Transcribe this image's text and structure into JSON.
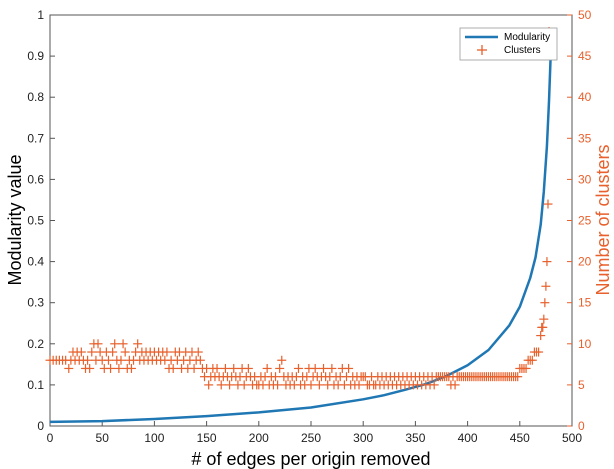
{
  "colors": {
    "modularity": "#1f77b4",
    "clusters": "#e8602c",
    "axis": "#333333"
  },
  "chart_data": {
    "type": "line+scatter",
    "xlabel": "# of edges per origin removed",
    "ylabel_left": "Modularity value",
    "ylabel_right": "Number of clusters",
    "xlim": [
      0,
      500
    ],
    "ylim_left": [
      0,
      1
    ],
    "ylim_right": [
      0,
      50
    ],
    "xticks": [
      "0",
      "50",
      "100",
      "150",
      "200",
      "250",
      "300",
      "350",
      "400",
      "450",
      "500"
    ],
    "yticks_left": [
      "0",
      "0.1",
      "0.2",
      "0.3",
      "0.4",
      "0.5",
      "0.6",
      "0.7",
      "0.8",
      "0.9",
      "1"
    ],
    "yticks_right": [
      "0",
      "5",
      "10",
      "15",
      "20",
      "25",
      "30",
      "35",
      "40",
      "45",
      "50"
    ],
    "legend": {
      "position": "top-right",
      "modularity_label": "Modularity",
      "clusters_label": "Clusters"
    },
    "grid": false,
    "series": [
      {
        "name": "Modularity",
        "type": "line",
        "axis": "left",
        "x": [
          0,
          50,
          100,
          150,
          200,
          250,
          300,
          320,
          340,
          360,
          380,
          400,
          420,
          440,
          450,
          460,
          465,
          470,
          473,
          476,
          478,
          480
        ],
        "y": [
          0.01,
          0.012,
          0.017,
          0.024,
          0.033,
          0.045,
          0.065,
          0.075,
          0.088,
          0.102,
          0.122,
          0.148,
          0.185,
          0.245,
          0.29,
          0.36,
          0.41,
          0.49,
          0.57,
          0.68,
          0.79,
          0.93
        ]
      },
      {
        "name": "Clusters",
        "type": "scatter",
        "axis": "right",
        "points": [
          [
            0,
            8
          ],
          [
            3,
            8
          ],
          [
            6,
            8
          ],
          [
            9,
            8
          ],
          [
            12,
            8
          ],
          [
            15,
            8
          ],
          [
            18,
            7
          ],
          [
            20,
            8
          ],
          [
            22,
            9
          ],
          [
            24,
            8
          ],
          [
            26,
            9
          ],
          [
            28,
            8
          ],
          [
            30,
            9
          ],
          [
            32,
            8
          ],
          [
            34,
            7
          ],
          [
            36,
            8
          ],
          [
            38,
            7
          ],
          [
            40,
            9
          ],
          [
            42,
            10
          ],
          [
            44,
            8
          ],
          [
            46,
            10
          ],
          [
            48,
            9
          ],
          [
            50,
            8
          ],
          [
            52,
            7
          ],
          [
            54,
            9
          ],
          [
            56,
            8
          ],
          [
            58,
            7
          ],
          [
            60,
            9
          ],
          [
            62,
            10
          ],
          [
            64,
            8
          ],
          [
            66,
            7
          ],
          [
            68,
            8
          ],
          [
            70,
            10
          ],
          [
            72,
            9
          ],
          [
            74,
            7
          ],
          [
            76,
            8
          ],
          [
            78,
            7
          ],
          [
            80,
            8
          ],
          [
            82,
            9
          ],
          [
            84,
            10
          ],
          [
            86,
            8
          ],
          [
            88,
            9
          ],
          [
            90,
            8
          ],
          [
            92,
            9
          ],
          [
            94,
            8
          ],
          [
            96,
            9
          ],
          [
            98,
            8
          ],
          [
            100,
            9
          ],
          [
            102,
            8
          ],
          [
            104,
            9
          ],
          [
            106,
            8
          ],
          [
            108,
            9
          ],
          [
            110,
            8
          ],
          [
            112,
            9
          ],
          [
            114,
            7
          ],
          [
            116,
            8
          ],
          [
            118,
            7
          ],
          [
            120,
            9
          ],
          [
            122,
            8
          ],
          [
            124,
            9
          ],
          [
            126,
            7
          ],
          [
            128,
            8
          ],
          [
            130,
            9
          ],
          [
            132,
            7
          ],
          [
            134,
            8
          ],
          [
            136,
            9
          ],
          [
            138,
            7
          ],
          [
            140,
            8
          ],
          [
            142,
            9
          ],
          [
            144,
            8
          ],
          [
            146,
            7
          ],
          [
            148,
            6
          ],
          [
            150,
            7
          ],
          [
            152,
            5
          ],
          [
            154,
            6
          ],
          [
            156,
            7
          ],
          [
            158,
            6
          ],
          [
            160,
            7
          ],
          [
            162,
            6
          ],
          [
            164,
            5
          ],
          [
            166,
            6
          ],
          [
            168,
            7
          ],
          [
            170,
            6
          ],
          [
            172,
            5
          ],
          [
            174,
            6
          ],
          [
            176,
            7
          ],
          [
            178,
            6
          ],
          [
            180,
            5
          ],
          [
            182,
            6
          ],
          [
            184,
            7
          ],
          [
            186,
            5
          ],
          [
            188,
            6
          ],
          [
            190,
            7
          ],
          [
            192,
            6
          ],
          [
            194,
            5
          ],
          [
            196,
            6
          ],
          [
            198,
            5
          ],
          [
            200,
            5
          ],
          [
            202,
            6
          ],
          [
            204,
            5
          ],
          [
            206,
            6
          ],
          [
            208,
            7
          ],
          [
            210,
            5
          ],
          [
            212,
            6
          ],
          [
            214,
            5
          ],
          [
            216,
            6
          ],
          [
            218,
            5
          ],
          [
            220,
            7
          ],
          [
            222,
            8
          ],
          [
            224,
            6
          ],
          [
            226,
            5
          ],
          [
            228,
            6
          ],
          [
            230,
            5
          ],
          [
            232,
            6
          ],
          [
            234,
            5
          ],
          [
            236,
            6
          ],
          [
            238,
            7
          ],
          [
            240,
            5
          ],
          [
            242,
            6
          ],
          [
            244,
            5
          ],
          [
            246,
            6
          ],
          [
            248,
            7
          ],
          [
            250,
            5
          ],
          [
            252,
            6
          ],
          [
            254,
            7
          ],
          [
            256,
            6
          ],
          [
            258,
            5
          ],
          [
            260,
            6
          ],
          [
            262,
            7
          ],
          [
            264,
            6
          ],
          [
            266,
            5
          ],
          [
            268,
            6
          ],
          [
            270,
            7
          ],
          [
            272,
            5
          ],
          [
            274,
            6
          ],
          [
            276,
            5
          ],
          [
            278,
            6
          ],
          [
            280,
            7
          ],
          [
            282,
            5
          ],
          [
            284,
            6
          ],
          [
            286,
            7
          ],
          [
            288,
            5
          ],
          [
            290,
            6
          ],
          [
            292,
            5
          ],
          [
            294,
            6
          ],
          [
            296,
            5
          ],
          [
            298,
            6
          ],
          [
            300,
            6
          ],
          [
            302,
            6
          ],
          [
            304,
            5
          ],
          [
            306,
            5
          ],
          [
            308,
            6
          ],
          [
            310,
            5
          ],
          [
            312,
            5
          ],
          [
            314,
            6
          ],
          [
            316,
            5
          ],
          [
            318,
            6
          ],
          [
            320,
            5
          ],
          [
            322,
            6
          ],
          [
            324,
            5
          ],
          [
            326,
            6
          ],
          [
            328,
            5
          ],
          [
            330,
            6
          ],
          [
            332,
            5
          ],
          [
            334,
            6
          ],
          [
            336,
            5
          ],
          [
            338,
            6
          ],
          [
            340,
            5
          ],
          [
            342,
            6
          ],
          [
            344,
            5
          ],
          [
            346,
            6
          ],
          [
            348,
            5
          ],
          [
            350,
            6
          ],
          [
            352,
            5
          ],
          [
            354,
            6
          ],
          [
            356,
            5
          ],
          [
            358,
            6
          ],
          [
            360,
            5
          ],
          [
            362,
            6
          ],
          [
            364,
            5
          ],
          [
            366,
            6
          ],
          [
            368,
            5
          ],
          [
            370,
            6
          ],
          [
            372,
            6
          ],
          [
            374,
            6
          ],
          [
            376,
            6
          ],
          [
            378,
            6
          ],
          [
            380,
            6
          ],
          [
            382,
            6
          ],
          [
            384,
            5
          ],
          [
            386,
            6
          ],
          [
            388,
            5
          ],
          [
            390,
            6
          ],
          [
            392,
            6
          ],
          [
            394,
            6
          ],
          [
            396,
            6
          ],
          [
            398,
            6
          ],
          [
            400,
            6
          ],
          [
            402,
            6
          ],
          [
            404,
            6
          ],
          [
            406,
            6
          ],
          [
            408,
            6
          ],
          [
            410,
            6
          ],
          [
            412,
            6
          ],
          [
            414,
            6
          ],
          [
            416,
            6
          ],
          [
            418,
            6
          ],
          [
            420,
            6
          ],
          [
            422,
            6
          ],
          [
            424,
            6
          ],
          [
            426,
            6
          ],
          [
            428,
            6
          ],
          [
            430,
            6
          ],
          [
            432,
            6
          ],
          [
            434,
            6
          ],
          [
            436,
            6
          ],
          [
            438,
            6
          ],
          [
            440,
            6
          ],
          [
            442,
            6
          ],
          [
            444,
            6
          ],
          [
            446,
            6
          ],
          [
            448,
            6
          ],
          [
            450,
            7
          ],
          [
            452,
            7
          ],
          [
            454,
            7
          ],
          [
            456,
            7
          ],
          [
            458,
            8
          ],
          [
            460,
            8
          ],
          [
            462,
            8
          ],
          [
            464,
            9
          ],
          [
            466,
            9
          ],
          [
            468,
            9
          ],
          [
            470,
            11
          ],
          [
            471,
            12
          ],
          [
            472,
            12
          ],
          [
            473,
            13
          ],
          [
            474,
            15
          ],
          [
            475,
            17
          ],
          [
            476,
            20
          ],
          [
            477,
            27
          ],
          [
            478,
            48
          ]
        ]
      }
    ]
  }
}
